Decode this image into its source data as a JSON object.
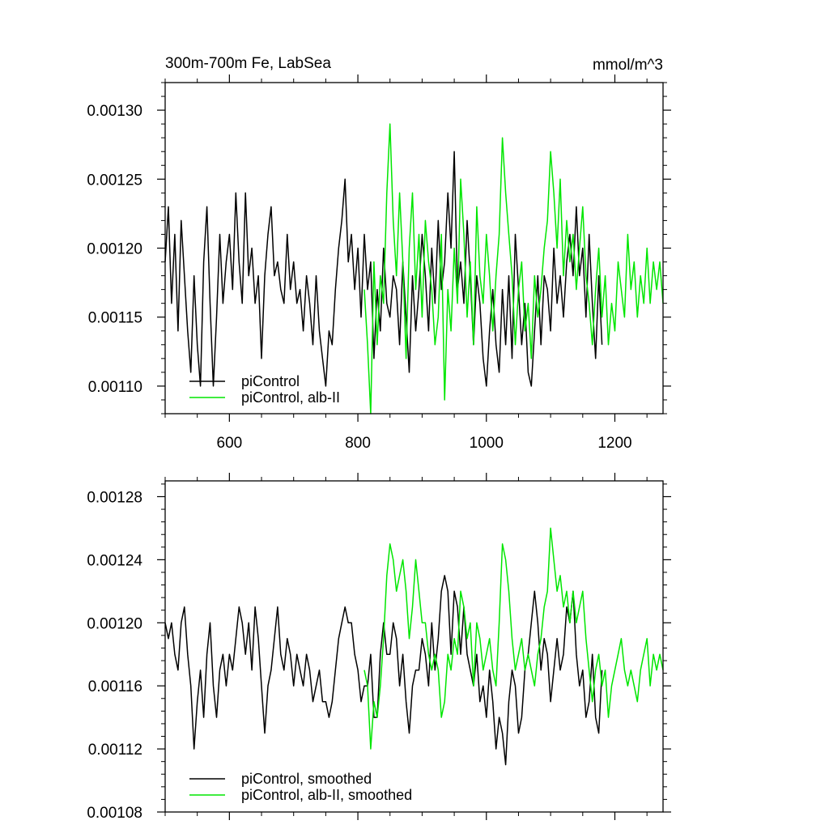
{
  "chart_data": [
    {
      "type": "line",
      "title": "300m-700m Fe, LabSea",
      "units": "mmol/m^3",
      "xlim": [
        500,
        1275
      ],
      "ylim": [
        0.00108,
        0.00132
      ],
      "x_ticks": [
        600,
        800,
        1000,
        1200
      ],
      "x_tick_labels": [
        "600",
        "800",
        "1000",
        "1200"
      ],
      "y_ticks": [
        0.0011,
        0.00115,
        0.0012,
        0.00125,
        0.0013
      ],
      "y_tick_labels": [
        "0.00110",
        "0.00115",
        "0.00120",
        "0.00125",
        "0.00130"
      ],
      "legend_position": "bottom-left",
      "series": [
        {
          "name": "piControl",
          "color": "#000000",
          "x": [
            500,
            505,
            510,
            515,
            520,
            525,
            530,
            535,
            540,
            545,
            550,
            555,
            560,
            565,
            570,
            575,
            580,
            585,
            590,
            595,
            600,
            605,
            610,
            615,
            620,
            625,
            630,
            635,
            640,
            645,
            650,
            655,
            660,
            665,
            670,
            675,
            680,
            685,
            690,
            695,
            700,
            705,
            710,
            715,
            720,
            725,
            730,
            735,
            740,
            745,
            750,
            755,
            760,
            765,
            770,
            775,
            780,
            785,
            790,
            795,
            800,
            805,
            810,
            815,
            820,
            825,
            830,
            835,
            840,
            845,
            850,
            855,
            860,
            865,
            870,
            875,
            880,
            885,
            890,
            895,
            900,
            905,
            910,
            915,
            920,
            925,
            930,
            935,
            940,
            945,
            950,
            955,
            960,
            965,
            970,
            975,
            980,
            985,
            990,
            995,
            1000,
            1005,
            1010,
            1015,
            1020,
            1025,
            1030,
            1035,
            1040,
            1045,
            1050,
            1055,
            1060,
            1065,
            1070,
            1075,
            1080,
            1085,
            1090,
            1095,
            1100,
            1105,
            1110,
            1115,
            1120,
            1125,
            1130,
            1135,
            1140,
            1145,
            1150,
            1155,
            1160,
            1165,
            1170,
            1175,
            1180
          ],
          "y": [
            0.00119,
            0.00123,
            0.00116,
            0.00121,
            0.00114,
            0.00122,
            0.00118,
            0.00114,
            0.00111,
            0.00118,
            0.00113,
            0.0011,
            0.00119,
            0.00123,
            0.00116,
            0.0011,
            0.00115,
            0.00121,
            0.00116,
            0.00119,
            0.00121,
            0.00117,
            0.00124,
            0.00119,
            0.00116,
            0.00124,
            0.00118,
            0.0012,
            0.00116,
            0.00118,
            0.00112,
            0.00118,
            0.00121,
            0.00123,
            0.00118,
            0.00119,
            0.00117,
            0.00116,
            0.00121,
            0.00117,
            0.00119,
            0.00116,
            0.00117,
            0.00114,
            0.00118,
            0.00116,
            0.00113,
            0.00118,
            0.00114,
            0.00112,
            0.0011,
            0.00114,
            0.00113,
            0.00117,
            0.0012,
            0.00122,
            0.00125,
            0.00119,
            0.00121,
            0.00117,
            0.0012,
            0.00115,
            0.00121,
            0.00117,
            0.00119,
            0.00112,
            0.00117,
            0.00114,
            0.0012,
            0.00116,
            0.00115,
            0.00118,
            0.00117,
            0.00113,
            0.00119,
            0.00115,
            0.00111,
            0.00118,
            0.00114,
            0.00117,
            0.00121,
            0.00118,
            0.00114,
            0.0012,
            0.00116,
            0.00122,
            0.00117,
            0.00119,
            0.00124,
            0.0012,
            0.00127,
            0.00117,
            0.00119,
            0.00116,
            0.00122,
            0.00118,
            0.00113,
            0.00118,
            0.00116,
            0.00112,
            0.0011,
            0.00114,
            0.00117,
            0.00113,
            0.00111,
            0.00117,
            0.00113,
            0.00118,
            0.00112,
            0.00121,
            0.00117,
            0.00113,
            0.00116,
            0.00111,
            0.0011,
            0.00114,
            0.00118,
            0.00113,
            0.00118,
            0.00117,
            0.00114,
            0.0012,
            0.00116,
            0.00118,
            0.00115,
            0.00119,
            0.00121,
            0.00118,
            0.00123,
            0.00118,
            0.0012,
            0.00115,
            0.00121,
            0.00116,
            0.00112,
            0.00118,
            0.00113
          ]
        },
        {
          "name": "piControl, alb-II",
          "color": "#00e600",
          "x": [
            810,
            815,
            820,
            825,
            830,
            835,
            840,
            845,
            850,
            855,
            860,
            865,
            870,
            875,
            880,
            885,
            890,
            895,
            900,
            905,
            910,
            915,
            920,
            925,
            930,
            935,
            940,
            945,
            950,
            955,
            960,
            965,
            970,
            975,
            980,
            985,
            990,
            995,
            1000,
            1005,
            1010,
            1015,
            1020,
            1025,
            1030,
            1035,
            1040,
            1045,
            1050,
            1055,
            1060,
            1065,
            1070,
            1075,
            1080,
            1085,
            1090,
            1095,
            1100,
            1105,
            1110,
            1115,
            1120,
            1125,
            1130,
            1135,
            1140,
            1145,
            1150,
            1155,
            1160,
            1165,
            1170,
            1175,
            1180,
            1185,
            1190,
            1195,
            1200,
            1205,
            1210,
            1215,
            1220,
            1225,
            1230,
            1235,
            1240,
            1245,
            1250,
            1255,
            1260,
            1265,
            1270,
            1275
          ],
          "y": [
            0.00117,
            0.00113,
            0.00108,
            0.00119,
            0.00113,
            0.00118,
            0.00116,
            0.00124,
            0.00129,
            0.00122,
            0.00118,
            0.00124,
            0.00119,
            0.00112,
            0.0012,
            0.00124,
            0.00117,
            0.00121,
            0.00115,
            0.00122,
            0.00119,
            0.00117,
            0.00113,
            0.00115,
            0.00121,
            0.00109,
            0.00117,
            0.00114,
            0.0012,
            0.00116,
            0.00125,
            0.00121,
            0.00115,
            0.00119,
            0.00113,
            0.00123,
            0.00118,
            0.00116,
            0.00121,
            0.00118,
            0.00114,
            0.00118,
            0.00121,
            0.00128,
            0.00124,
            0.00121,
            0.00118,
            0.00113,
            0.00117,
            0.00119,
            0.00114,
            0.00116,
            0.00112,
            0.00118,
            0.00115,
            0.00117,
            0.0012,
            0.00122,
            0.00127,
            0.00124,
            0.0012,
            0.00125,
            0.00118,
            0.00122,
            0.00119,
            0.00121,
            0.00117,
            0.0012,
            0.00123,
            0.00118,
            0.00116,
            0.00113,
            0.00117,
            0.0012,
            0.00115,
            0.00118,
            0.00113,
            0.00116,
            0.00114,
            0.00119,
            0.00117,
            0.00115,
            0.00121,
            0.00117,
            0.00119,
            0.00115,
            0.00118,
            0.00116,
            0.0012,
            0.00116,
            0.00119,
            0.00117,
            0.00119,
            0.00116
          ]
        }
      ]
    },
    {
      "type": "line",
      "xlim": [
        500,
        1275
      ],
      "ylim": [
        0.00108,
        0.00129
      ],
      "x_ticks": [
        600,
        800,
        1000,
        1200
      ],
      "y_ticks": [
        0.00108,
        0.00112,
        0.00116,
        0.0012,
        0.00124,
        0.00128
      ],
      "y_tick_labels": [
        "0.00108",
        "0.00112",
        "0.00116",
        "0.00120",
        "0.00124",
        "0.00128"
      ],
      "legend_position": "bottom-left",
      "series": [
        {
          "name": "piControl, smoothed",
          "color": "#000000",
          "x": [
            500,
            505,
            510,
            515,
            520,
            525,
            530,
            535,
            540,
            545,
            550,
            555,
            560,
            565,
            570,
            575,
            580,
            585,
            590,
            595,
            600,
            605,
            610,
            615,
            620,
            625,
            630,
            635,
            640,
            645,
            650,
            655,
            660,
            665,
            670,
            675,
            680,
            685,
            690,
            695,
            700,
            705,
            710,
            715,
            720,
            725,
            730,
            735,
            740,
            745,
            750,
            755,
            760,
            765,
            770,
            775,
            780,
            785,
            790,
            795,
            800,
            805,
            810,
            815,
            820,
            825,
            830,
            835,
            840,
            845,
            850,
            855,
            860,
            865,
            870,
            875,
            880,
            885,
            890,
            895,
            900,
            905,
            910,
            915,
            920,
            925,
            930,
            935,
            940,
            945,
            950,
            955,
            960,
            965,
            970,
            975,
            980,
            985,
            990,
            995,
            1000,
            1005,
            1010,
            1015,
            1020,
            1025,
            1030,
            1035,
            1040,
            1045,
            1050,
            1055,
            1060,
            1065,
            1070,
            1075,
            1080,
            1085,
            1090,
            1095,
            1100,
            1105,
            1110,
            1115,
            1120,
            1125,
            1130,
            1135,
            1140,
            1145,
            1150,
            1155,
            1160,
            1165,
            1170,
            1175,
            1180
          ],
          "y": [
            0.0012,
            0.00119,
            0.0012,
            0.00118,
            0.00117,
            0.0012,
            0.00121,
            0.00118,
            0.00116,
            0.00112,
            0.00115,
            0.00117,
            0.00114,
            0.00118,
            0.0012,
            0.00116,
            0.00114,
            0.00117,
            0.00118,
            0.00116,
            0.00118,
            0.00117,
            0.00119,
            0.00121,
            0.0012,
            0.00118,
            0.0012,
            0.00117,
            0.00121,
            0.00119,
            0.00116,
            0.00113,
            0.00116,
            0.00117,
            0.00119,
            0.00121,
            0.00118,
            0.00117,
            0.00119,
            0.00118,
            0.00116,
            0.00118,
            0.00117,
            0.00116,
            0.00118,
            0.00117,
            0.00115,
            0.00116,
            0.00117,
            0.00115,
            0.00115,
            0.00114,
            0.00115,
            0.00117,
            0.00119,
            0.0012,
            0.00121,
            0.0012,
            0.0012,
            0.00118,
            0.00117,
            0.00115,
            0.00116,
            0.00116,
            0.00118,
            0.00114,
            0.00114,
            0.00118,
            0.0012,
            0.00118,
            0.00118,
            0.0012,
            0.00119,
            0.00116,
            0.00118,
            0.00115,
            0.00113,
            0.00116,
            0.00117,
            0.00117,
            0.00119,
            0.00118,
            0.00116,
            0.0012,
            0.00117,
            0.00119,
            0.00122,
            0.00123,
            0.00122,
            0.00118,
            0.00122,
            0.00121,
            0.00118,
            0.00121,
            0.00118,
            0.00117,
            0.00116,
            0.00118,
            0.00115,
            0.00116,
            0.00114,
            0.00117,
            0.00115,
            0.00112,
            0.00114,
            0.00113,
            0.00111,
            0.00115,
            0.00117,
            0.00116,
            0.00113,
            0.00114,
            0.00117,
            0.00118,
            0.0012,
            0.00122,
            0.0012,
            0.00117,
            0.00119,
            0.00118,
            0.00115,
            0.00117,
            0.00119,
            0.00117,
            0.00118,
            0.00121,
            0.0012,
            0.00122,
            0.00118,
            0.00116,
            0.00117,
            0.00114,
            0.00115,
            0.00118,
            0.00114,
            0.00113,
            0.00117
          ]
        },
        {
          "name": "piControl, alb-II, smoothed",
          "color": "#00e600",
          "x": [
            810,
            815,
            820,
            825,
            830,
            835,
            840,
            845,
            850,
            855,
            860,
            865,
            870,
            875,
            880,
            885,
            890,
            895,
            900,
            905,
            910,
            915,
            920,
            925,
            930,
            935,
            940,
            945,
            950,
            955,
            960,
            965,
            970,
            975,
            980,
            985,
            990,
            995,
            1000,
            1005,
            1010,
            1015,
            1020,
            1025,
            1030,
            1035,
            1040,
            1045,
            1050,
            1055,
            1060,
            1065,
            1070,
            1075,
            1080,
            1085,
            1090,
            1095,
            1100,
            1105,
            1110,
            1115,
            1120,
            1125,
            1130,
            1135,
            1140,
            1145,
            1150,
            1155,
            1160,
            1165,
            1170,
            1175,
            1180,
            1185,
            1190,
            1195,
            1200,
            1205,
            1210,
            1215,
            1220,
            1225,
            1230,
            1235,
            1240,
            1245,
            1250,
            1255,
            1260,
            1265,
            1270,
            1275
          ],
          "y": [
            0.00117,
            0.00116,
            0.00112,
            0.00115,
            0.00114,
            0.00116,
            0.00119,
            0.00123,
            0.00125,
            0.00124,
            0.00122,
            0.00123,
            0.00124,
            0.00122,
            0.00119,
            0.00121,
            0.00124,
            0.00122,
            0.0012,
            0.0012,
            0.00118,
            0.00117,
            0.00118,
            0.00117,
            0.00114,
            0.00115,
            0.00118,
            0.00117,
            0.00119,
            0.00118,
            0.00122,
            0.00121,
            0.00119,
            0.0012,
            0.00116,
            0.0012,
            0.00119,
            0.00117,
            0.00118,
            0.00119,
            0.00117,
            0.00116,
            0.0012,
            0.00125,
            0.00124,
            0.00122,
            0.00119,
            0.00117,
            0.00118,
            0.00119,
            0.00117,
            0.00118,
            0.00117,
            0.00116,
            0.00118,
            0.00119,
            0.00121,
            0.00122,
            0.00126,
            0.00124,
            0.00122,
            0.00123,
            0.00121,
            0.00122,
            0.0012,
            0.00122,
            0.0012,
            0.00121,
            0.00122,
            0.00119,
            0.00117,
            0.00115,
            0.00117,
            0.00118,
            0.00116,
            0.00117,
            0.00114,
            0.00116,
            0.00117,
            0.00118,
            0.00119,
            0.00117,
            0.00116,
            0.00117,
            0.00116,
            0.00115,
            0.00117,
            0.00118,
            0.00119,
            0.00116,
            0.00118,
            0.00117,
            0.00118,
            0.00117
          ]
        }
      ]
    }
  ]
}
